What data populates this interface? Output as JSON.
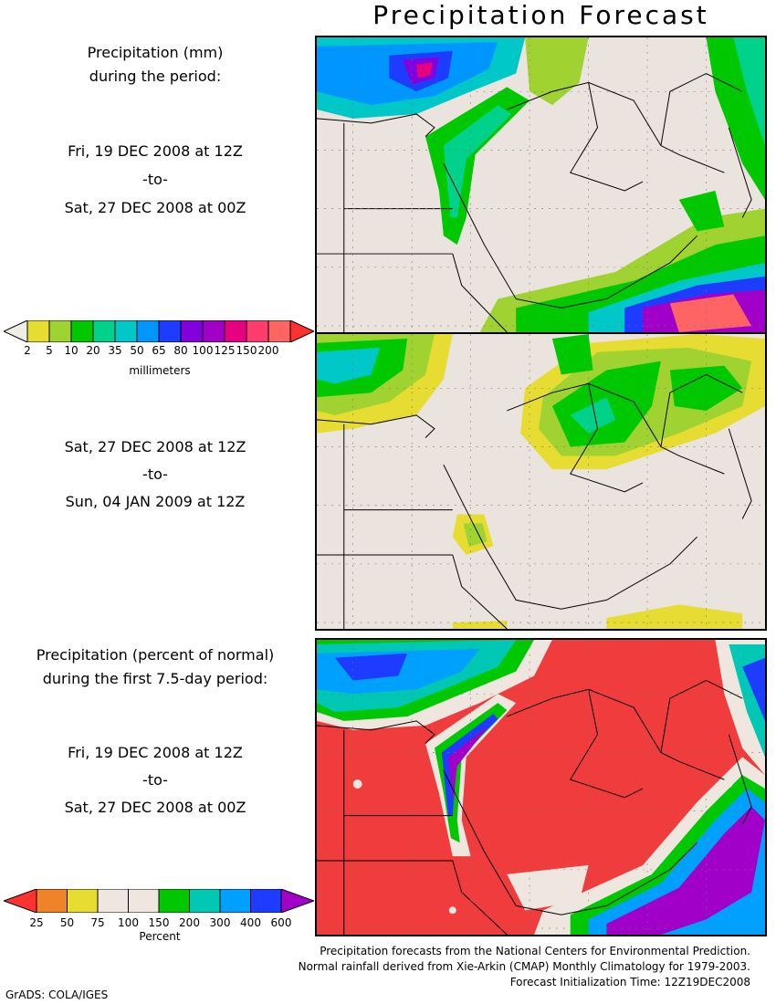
{
  "title": "Precipitation Forecast",
  "panel1": {
    "line1": "Precipitation (mm)",
    "line2": "during the period:",
    "start": "Fri, 19 DEC 2008 at 12Z",
    "to": "-to-",
    "end": "Sat, 27 DEC 2008 at 00Z"
  },
  "panel2": {
    "start": "Sat, 27 DEC 2008 at 12Z",
    "to": "-to-",
    "end": "Sun, 04 JAN 2009 at 12Z"
  },
  "panel3": {
    "line1": "Precipitation (percent of normal)",
    "line2": "during the first 7.5-day period:",
    "start": "Fri, 19 DEC 2008 at 12Z",
    "to": "-to-",
    "end": "Sat, 27 DEC 2008 at 00Z"
  },
  "mm_colorbar": {
    "labels": [
      "2",
      "5",
      "10",
      "20",
      "35",
      "50",
      "65",
      "80",
      "100",
      "125",
      "150",
      "200"
    ],
    "colors": [
      "#e6dc32",
      "#a0d232",
      "#00c800",
      "#00d28c",
      "#00c8c8",
      "#0096ff",
      "#1e3cff",
      "#8200dc",
      "#a000c8",
      "#e60080",
      "#ff3c6e",
      "#ff6464"
    ],
    "under_color": "#f0ece6",
    "over_color": "#ff3232",
    "units": "millimeters"
  },
  "pct_colorbar": {
    "labels": [
      "25",
      "50",
      "75",
      "100",
      "150",
      "200",
      "300",
      "400",
      "600"
    ],
    "colors": [
      "#ff3232",
      "#f08228",
      "#e6dc32",
      "#f0e6e0",
      "#f0e6e0",
      "#00c800",
      "#00c8b4",
      "#00a0ff",
      "#1e3cff",
      "#a000c8"
    ],
    "units": "Percent"
  },
  "footer": {
    "line1": "Precipitation forecasts from the National Centers for Environmental Prediction.",
    "line2": "Normal rainfall derived from Xie-Arkin (CMAP) Monthly Climatology for 1979-2003.",
    "line3": "Forecast Initialization Time: 12Z19DEC2008"
  },
  "credit": "GrADS: COLA/IGES",
  "colors": {
    "land": "#ebe3dd",
    "red_field": "#f03c3c"
  }
}
